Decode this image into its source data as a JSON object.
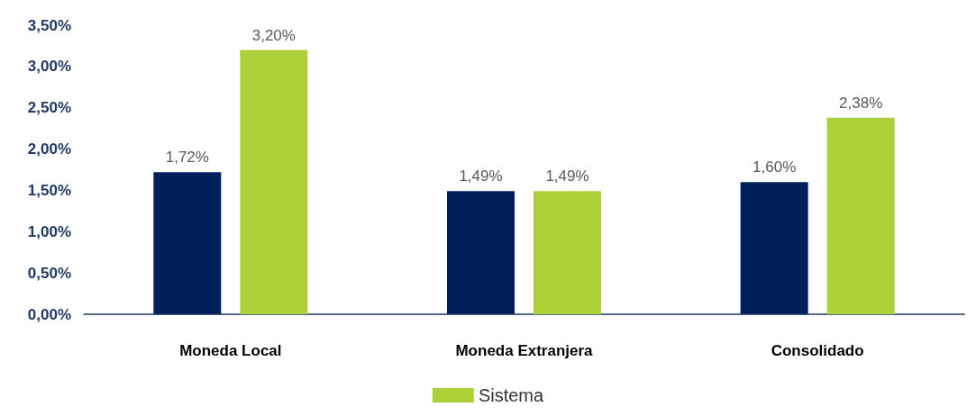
{
  "chart_data": {
    "type": "bar",
    "categories": [
      "Moneda Local",
      "Moneda Extranjera",
      "Consolidado"
    ],
    "series": [
      {
        "color": "#00205b",
        "values": [
          1.72,
          1.49,
          1.6
        ],
        "value_labels": [
          "1,72%",
          "1,49%",
          "1,60%"
        ]
      },
      {
        "name": "Sistema",
        "color": "#adcf38",
        "values": [
          3.2,
          1.49,
          2.38
        ],
        "value_labels": [
          "3,20%",
          "1,49%",
          "2,38%"
        ]
      }
    ],
    "ylim": [
      0,
      3.5
    ],
    "yticks": [
      {
        "value": 0,
        "label": "0,00%"
      },
      {
        "value": 0.5,
        "label": "0,50%"
      },
      {
        "value": 1,
        "label": "1,00%"
      },
      {
        "value": 1.5,
        "label": "1,50%"
      },
      {
        "value": 2,
        "label": "2,00%"
      },
      {
        "value": 2.5,
        "label": "2,50%"
      },
      {
        "value": 3,
        "label": "3,00%"
      },
      {
        "value": 3.5,
        "label": "3,50%"
      }
    ],
    "grid": false,
    "legend": "bottom"
  }
}
